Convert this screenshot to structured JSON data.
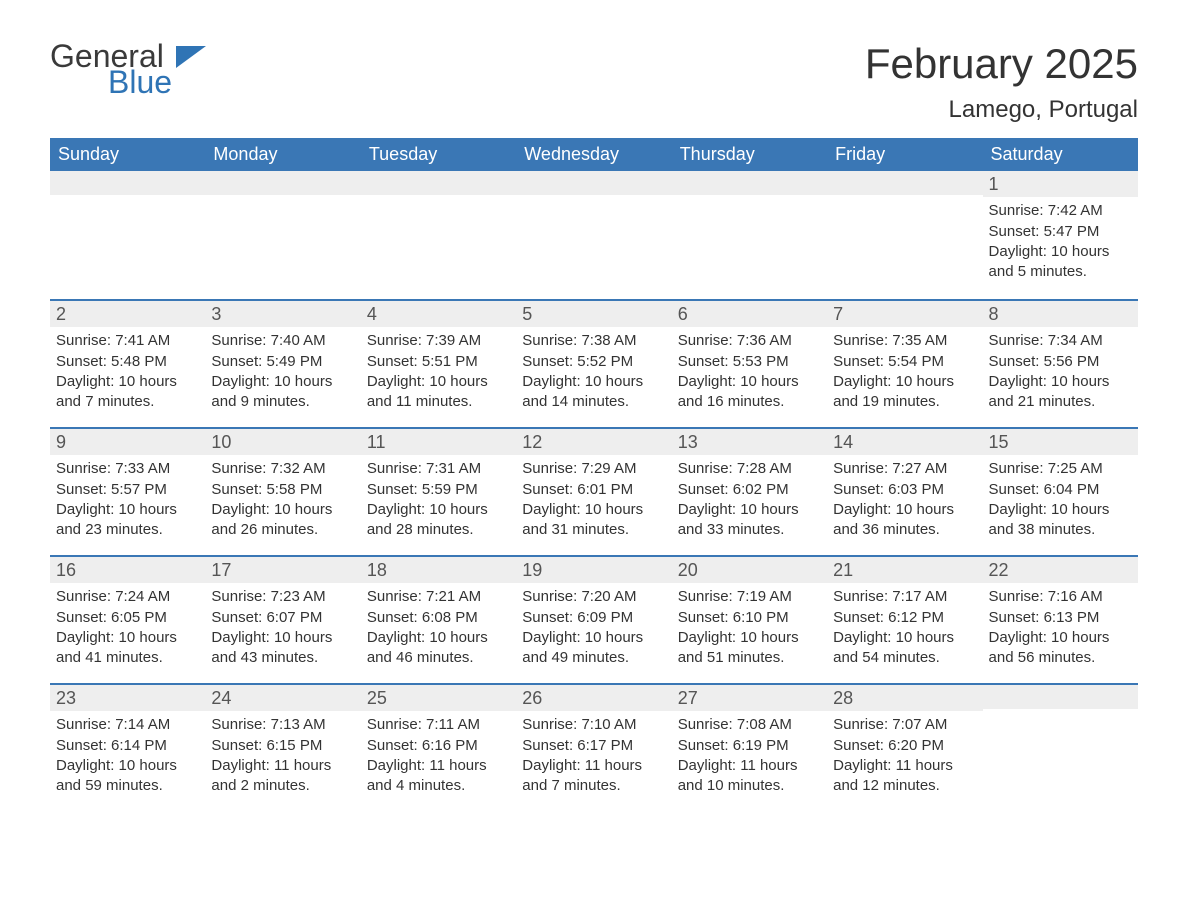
{
  "logo": {
    "word1": "General",
    "word2": "Blue"
  },
  "title": "February 2025",
  "location": "Lamego, Portugal",
  "colors": {
    "header_bg": "#3a77b5",
    "header_text": "#ffffff",
    "daynum_bg": "#eeeeee",
    "rule": "#3a77b5",
    "logo_blue": "#2f74b5",
    "body_text": "#333333"
  },
  "weekdays": [
    "Sunday",
    "Monday",
    "Tuesday",
    "Wednesday",
    "Thursday",
    "Friday",
    "Saturday"
  ],
  "weeks": [
    [
      null,
      null,
      null,
      null,
      null,
      null,
      {
        "n": "1",
        "sunrise": "Sunrise: 7:42 AM",
        "sunset": "Sunset: 5:47 PM",
        "daylight": "Daylight: 10 hours and 5 minutes."
      }
    ],
    [
      {
        "n": "2",
        "sunrise": "Sunrise: 7:41 AM",
        "sunset": "Sunset: 5:48 PM",
        "daylight": "Daylight: 10 hours and 7 minutes."
      },
      {
        "n": "3",
        "sunrise": "Sunrise: 7:40 AM",
        "sunset": "Sunset: 5:49 PM",
        "daylight": "Daylight: 10 hours and 9 minutes."
      },
      {
        "n": "4",
        "sunrise": "Sunrise: 7:39 AM",
        "sunset": "Sunset: 5:51 PM",
        "daylight": "Daylight: 10 hours and 11 minutes."
      },
      {
        "n": "5",
        "sunrise": "Sunrise: 7:38 AM",
        "sunset": "Sunset: 5:52 PM",
        "daylight": "Daylight: 10 hours and 14 minutes."
      },
      {
        "n": "6",
        "sunrise": "Sunrise: 7:36 AM",
        "sunset": "Sunset: 5:53 PM",
        "daylight": "Daylight: 10 hours and 16 minutes."
      },
      {
        "n": "7",
        "sunrise": "Sunrise: 7:35 AM",
        "sunset": "Sunset: 5:54 PM",
        "daylight": "Daylight: 10 hours and 19 minutes."
      },
      {
        "n": "8",
        "sunrise": "Sunrise: 7:34 AM",
        "sunset": "Sunset: 5:56 PM",
        "daylight": "Daylight: 10 hours and 21 minutes."
      }
    ],
    [
      {
        "n": "9",
        "sunrise": "Sunrise: 7:33 AM",
        "sunset": "Sunset: 5:57 PM",
        "daylight": "Daylight: 10 hours and 23 minutes."
      },
      {
        "n": "10",
        "sunrise": "Sunrise: 7:32 AM",
        "sunset": "Sunset: 5:58 PM",
        "daylight": "Daylight: 10 hours and 26 minutes."
      },
      {
        "n": "11",
        "sunrise": "Sunrise: 7:31 AM",
        "sunset": "Sunset: 5:59 PM",
        "daylight": "Daylight: 10 hours and 28 minutes."
      },
      {
        "n": "12",
        "sunrise": "Sunrise: 7:29 AM",
        "sunset": "Sunset: 6:01 PM",
        "daylight": "Daylight: 10 hours and 31 minutes."
      },
      {
        "n": "13",
        "sunrise": "Sunrise: 7:28 AM",
        "sunset": "Sunset: 6:02 PM",
        "daylight": "Daylight: 10 hours and 33 minutes."
      },
      {
        "n": "14",
        "sunrise": "Sunrise: 7:27 AM",
        "sunset": "Sunset: 6:03 PM",
        "daylight": "Daylight: 10 hours and 36 minutes."
      },
      {
        "n": "15",
        "sunrise": "Sunrise: 7:25 AM",
        "sunset": "Sunset: 6:04 PM",
        "daylight": "Daylight: 10 hours and 38 minutes."
      }
    ],
    [
      {
        "n": "16",
        "sunrise": "Sunrise: 7:24 AM",
        "sunset": "Sunset: 6:05 PM",
        "daylight": "Daylight: 10 hours and 41 minutes."
      },
      {
        "n": "17",
        "sunrise": "Sunrise: 7:23 AM",
        "sunset": "Sunset: 6:07 PM",
        "daylight": "Daylight: 10 hours and 43 minutes."
      },
      {
        "n": "18",
        "sunrise": "Sunrise: 7:21 AM",
        "sunset": "Sunset: 6:08 PM",
        "daylight": "Daylight: 10 hours and 46 minutes."
      },
      {
        "n": "19",
        "sunrise": "Sunrise: 7:20 AM",
        "sunset": "Sunset: 6:09 PM",
        "daylight": "Daylight: 10 hours and 49 minutes."
      },
      {
        "n": "20",
        "sunrise": "Sunrise: 7:19 AM",
        "sunset": "Sunset: 6:10 PM",
        "daylight": "Daylight: 10 hours and 51 minutes."
      },
      {
        "n": "21",
        "sunrise": "Sunrise: 7:17 AM",
        "sunset": "Sunset: 6:12 PM",
        "daylight": "Daylight: 10 hours and 54 minutes."
      },
      {
        "n": "22",
        "sunrise": "Sunrise: 7:16 AM",
        "sunset": "Sunset: 6:13 PM",
        "daylight": "Daylight: 10 hours and 56 minutes."
      }
    ],
    [
      {
        "n": "23",
        "sunrise": "Sunrise: 7:14 AM",
        "sunset": "Sunset: 6:14 PM",
        "daylight": "Daylight: 10 hours and 59 minutes."
      },
      {
        "n": "24",
        "sunrise": "Sunrise: 7:13 AM",
        "sunset": "Sunset: 6:15 PM",
        "daylight": "Daylight: 11 hours and 2 minutes."
      },
      {
        "n": "25",
        "sunrise": "Sunrise: 7:11 AM",
        "sunset": "Sunset: 6:16 PM",
        "daylight": "Daylight: 11 hours and 4 minutes."
      },
      {
        "n": "26",
        "sunrise": "Sunrise: 7:10 AM",
        "sunset": "Sunset: 6:17 PM",
        "daylight": "Daylight: 11 hours and 7 minutes."
      },
      {
        "n": "27",
        "sunrise": "Sunrise: 7:08 AM",
        "sunset": "Sunset: 6:19 PM",
        "daylight": "Daylight: 11 hours and 10 minutes."
      },
      {
        "n": "28",
        "sunrise": "Sunrise: 7:07 AM",
        "sunset": "Sunset: 6:20 PM",
        "daylight": "Daylight: 11 hours and 12 minutes."
      },
      null
    ]
  ]
}
